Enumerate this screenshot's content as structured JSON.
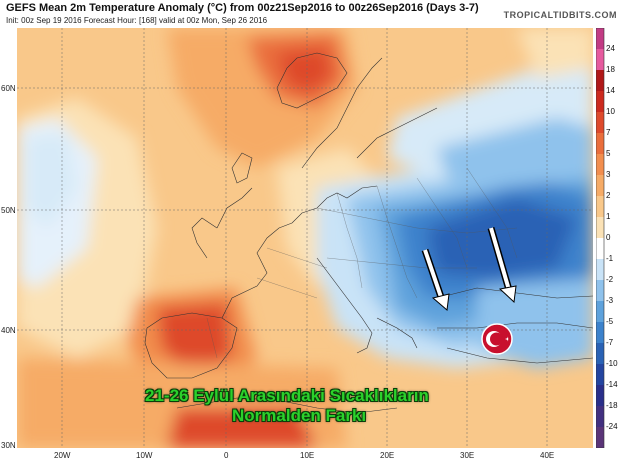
{
  "header": {
    "title": "GEFS Mean 2m Temperature Anomaly (°C) from 00z21Sep2016 to 00z26Sep2016 (Days 3-7)",
    "subtitle": "Init: 00z Sep 19 2016   Forecast Hour: [168]   valid at 00z Mon, Sep 26 2016",
    "brand": "TROPICALTIDBITS.COM"
  },
  "axes": {
    "lat_labels": [
      "60N",
      "50N",
      "40N",
      "30N"
    ],
    "lon_labels": [
      "20W",
      "10W",
      "0",
      "10E",
      "20E",
      "30E",
      "40E"
    ]
  },
  "colorbar": {
    "labels": [
      "24",
      "18",
      "14",
      "10",
      "7",
      "5",
      "3",
      "2",
      "1",
      "0",
      "-1",
      "-2",
      "-3",
      "-5",
      "-7",
      "-10",
      "-14",
      "-18",
      "-24"
    ],
    "colors": [
      "#c23b84",
      "#e65a9e",
      "#b01818",
      "#cc2a1e",
      "#de4a2c",
      "#ea6e3c",
      "#f28e4e",
      "#f6ab66",
      "#f9c88a",
      "#fbe2b6",
      "#ffffff",
      "#c9e3f7",
      "#8fc2ec",
      "#5ea2dc",
      "#3c82cc",
      "#2a62b5",
      "#2445a0",
      "#2a2f8a",
      "#423080",
      "#5a3478"
    ]
  },
  "caption": {
    "line1": "21-26 Eylül Arasındaki Sıcaklıkların",
    "line2": "Normalden Farkı"
  },
  "symbols": {
    "flag_color": "#c8102e",
    "arrow_color": "#ffffff"
  }
}
